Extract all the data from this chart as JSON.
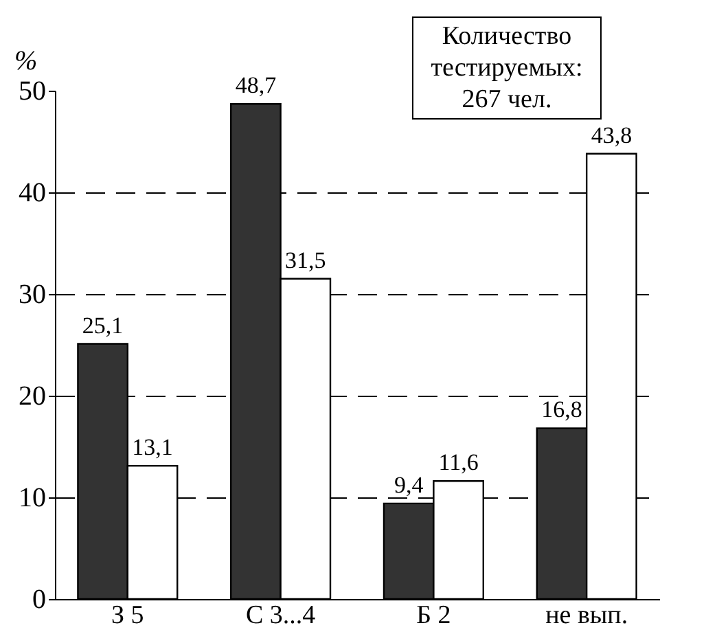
{
  "chart_data": {
    "type": "bar",
    "ylabel": "%",
    "categories": [
      "З 5",
      "С 3...4",
      "Б 2",
      "не вып."
    ],
    "series": [
      {
        "color": "#333333",
        "values": [
          25.1,
          48.7,
          9.4,
          16.8
        ],
        "value_labels": [
          "25,1",
          "48,7",
          "9,4",
          "16,8"
        ]
      },
      {
        "color": "#ffffff",
        "values": [
          13.1,
          31.5,
          11.6,
          43.8
        ],
        "value_labels": [
          "13,1",
          "31,5",
          "11,6",
          "43,8"
        ]
      }
    ],
    "ylim": [
      0,
      50
    ],
    "yticks": [
      0,
      10,
      20,
      30,
      40,
      50
    ],
    "grid": "y",
    "legend": false,
    "annotations": [
      "Количество тестируемых: 267 чел."
    ]
  }
}
